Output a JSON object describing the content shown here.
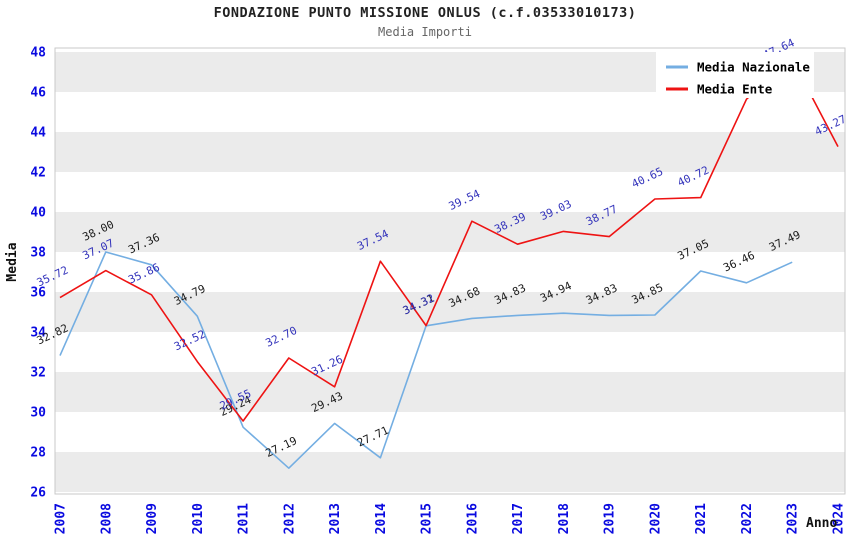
{
  "chart_data": {
    "type": "line",
    "title": "FONDAZIONE PUNTO MISSIONE ONLUS (c.f.03533010173)",
    "subtitle": "Media Importi",
    "xlabel": "Anno",
    "ylabel": "Media",
    "x": [
      2007,
      2008,
      2009,
      2010,
      2011,
      2012,
      2013,
      2014,
      2015,
      2016,
      2017,
      2018,
      2019,
      2020,
      2021,
      2022,
      2023,
      2024
    ],
    "ylim": [
      26,
      48
    ],
    "ytick_step": 2,
    "grid": "horizontal alternating bands",
    "legend_position": "top-right",
    "series": [
      {
        "name": "Media Nazionale",
        "color": "#74aee2",
        "label_color": "#1a1a1a",
        "values": [
          32.82,
          38.0,
          37.36,
          34.79,
          29.24,
          27.19,
          29.43,
          27.71,
          34.31,
          34.68,
          34.83,
          34.94,
          34.83,
          34.85,
          37.05,
          36.46,
          37.49,
          null
        ]
      },
      {
        "name": "Media Ente",
        "color": "#ee1313",
        "label_color": "#3333bb",
        "values": [
          35.72,
          37.07,
          35.86,
          32.52,
          29.55,
          32.7,
          31.26,
          37.54,
          34.32,
          39.54,
          38.39,
          39.03,
          38.77,
          40.65,
          40.72,
          45.64,
          47.64,
          43.27
        ]
      }
    ],
    "colors": {
      "band_gray": "#ebebeb",
      "plot_border": "#c9c9c9",
      "tick_label_blue": "#0a0ae0",
      "axis_title_black": "#111111",
      "legend_bg": "#ffffff",
      "legend_text": "#000000"
    }
  }
}
